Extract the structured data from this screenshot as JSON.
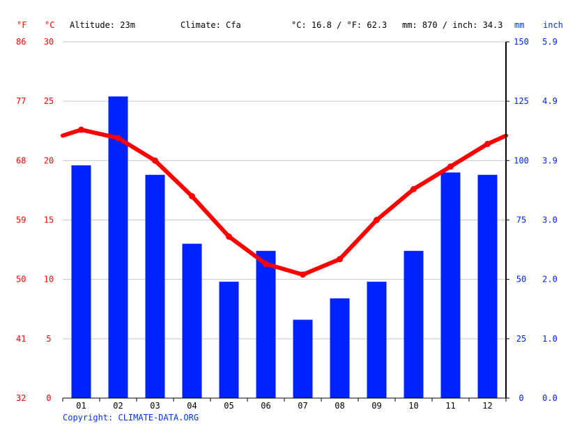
{
  "header": {
    "unit_f": "°F",
    "unit_c": "°C",
    "altitude": "Altitude: 23m",
    "climate": "Climate: Cfa",
    "temp_summary": "°C: 16.8 / °F: 62.3",
    "precip_summary": "mm: 870 / inch: 34.3",
    "unit_mm": "mm",
    "unit_inch": "inch"
  },
  "footer": {
    "copyright": "Copyright: CLIMATE-DATA.ORG"
  },
  "colors": {
    "temperature": "#ff0000",
    "precipitation": "#0022ff",
    "grid": "#c8c8c8",
    "axis": "#000000"
  },
  "chart_data": {
    "type": "bar",
    "categories": [
      "01",
      "02",
      "03",
      "04",
      "05",
      "06",
      "07",
      "08",
      "09",
      "10",
      "11",
      "12"
    ],
    "series": [
      {
        "kind": "bar",
        "axis": "right",
        "unit": "mm",
        "values": [
          98,
          127,
          94,
          65,
          49,
          62,
          33,
          42,
          49,
          62,
          95,
          94
        ]
      },
      {
        "kind": "line",
        "axis": "left",
        "unit": "°C",
        "values": [
          22.6,
          21.9,
          20.0,
          17.0,
          13.6,
          11.3,
          10.4,
          11.7,
          15.0,
          17.6,
          19.5,
          21.4
        ],
        "edge_left": 22.1,
        "edge_right": 22.1
      }
    ],
    "axes": {
      "celsius": {
        "min": 0,
        "max": 30,
        "ticks": [
          "0",
          "5",
          "10",
          "15",
          "20",
          "25",
          "30"
        ]
      },
      "fahrenheit": {
        "ticks": [
          "32",
          "41",
          "50",
          "59",
          "68",
          "77",
          "86"
        ]
      },
      "mm": {
        "min": 0,
        "max": 150,
        "ticks": [
          "0",
          "25",
          "50",
          "75",
          "100",
          "125",
          "150"
        ]
      },
      "inch": {
        "ticks": [
          "0.0",
          "1.0",
          "2.0",
          "3.0",
          "3.9",
          "4.9",
          "5.9"
        ]
      }
    },
    "grid": true
  }
}
